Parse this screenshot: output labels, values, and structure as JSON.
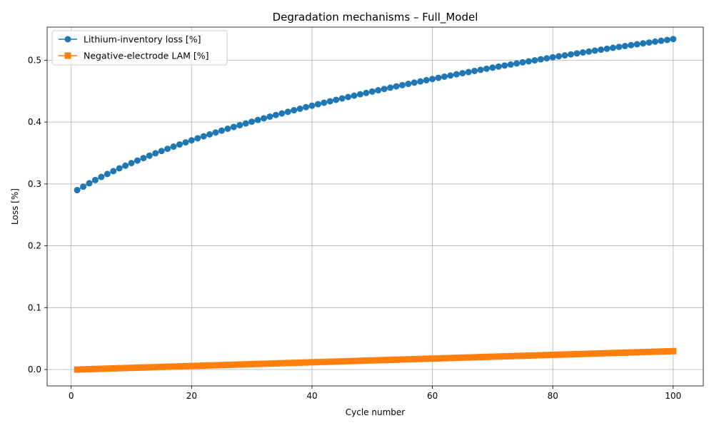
{
  "chart_data": {
    "type": "line",
    "title": "Degradation mechanisms – Full_Model",
    "xlabel": "Cycle number",
    "ylabel": "Loss [%]",
    "xlim": [
      -4.0,
      105.0
    ],
    "ylim": [
      -0.0265,
      0.5535
    ],
    "xticks": [
      0,
      20,
      40,
      60,
      80,
      100
    ],
    "yticks": [
      0.0,
      0.1,
      0.2,
      0.3,
      0.4,
      0.5
    ],
    "grid": true,
    "legend_position": "top-left",
    "x": [
      1,
      2,
      3,
      4,
      5,
      6,
      7,
      8,
      9,
      10,
      11,
      12,
      13,
      14,
      15,
      16,
      17,
      18,
      19,
      20,
      21,
      22,
      23,
      24,
      25,
      26,
      27,
      28,
      29,
      30,
      31,
      32,
      33,
      34,
      35,
      36,
      37,
      38,
      39,
      40,
      41,
      42,
      43,
      44,
      45,
      46,
      47,
      48,
      49,
      50,
      51,
      52,
      53,
      54,
      55,
      56,
      57,
      58,
      59,
      60,
      61,
      62,
      63,
      64,
      65,
      66,
      67,
      68,
      69,
      70,
      71,
      72,
      73,
      74,
      75,
      76,
      77,
      78,
      79,
      80,
      81,
      82,
      83,
      84,
      85,
      86,
      87,
      88,
      89,
      90,
      91,
      92,
      93,
      94,
      95,
      96,
      97,
      98,
      99,
      100
    ],
    "series": [
      {
        "name": "Lithium-inventory loss [%]",
        "color": "#1f77b4",
        "marker": "circle",
        "values": [
          0.29,
          0.2956,
          0.3011,
          0.3063,
          0.3113,
          0.3161,
          0.3207,
          0.3252,
          0.3295,
          0.3337,
          0.3378,
          0.3418,
          0.3457,
          0.3495,
          0.3532,
          0.3568,
          0.3603,
          0.3638,
          0.3672,
          0.3705,
          0.3738,
          0.377,
          0.3801,
          0.3832,
          0.3862,
          0.3892,
          0.3921,
          0.395,
          0.3978,
          0.4006,
          0.4034,
          0.4061,
          0.4088,
          0.4114,
          0.414,
          0.4166,
          0.4191,
          0.4216,
          0.4241,
          0.4265,
          0.4289,
          0.4313,
          0.4336,
          0.4359,
          0.4382,
          0.4405,
          0.4427,
          0.4449,
          0.4471,
          0.4493,
          0.4514,
          0.4535,
          0.4556,
          0.4577,
          0.4597,
          0.4618,
          0.4638,
          0.4657,
          0.4677,
          0.4696,
          0.4715,
          0.4734,
          0.4753,
          0.4772,
          0.479,
          0.4808,
          0.4826,
          0.4844,
          0.4862,
          0.488,
          0.4897,
          0.4914,
          0.4931,
          0.4948,
          0.4965,
          0.4982,
          0.4998,
          0.5014,
          0.5031,
          0.5047,
          0.5063,
          0.5078,
          0.5094,
          0.511,
          0.5125,
          0.514,
          0.5155,
          0.517,
          0.5185,
          0.52,
          0.5215,
          0.5229,
          0.5244,
          0.5258,
          0.5272,
          0.5286,
          0.53,
          0.5314,
          0.5328,
          0.5342
        ]
      },
      {
        "name": "Negative-electrode LAM [%]",
        "color": "#ff7f0e",
        "marker": "square",
        "values": [
          0.0,
          0.0003,
          0.0006,
          0.0009,
          0.0012,
          0.0015,
          0.0018,
          0.0021,
          0.0024,
          0.0027,
          0.003,
          0.0033,
          0.0036,
          0.0039,
          0.0042,
          0.0045,
          0.0048,
          0.0051,
          0.0054,
          0.0057,
          0.006,
          0.0063,
          0.0066,
          0.0069,
          0.0072,
          0.0075,
          0.0078,
          0.0081,
          0.0084,
          0.0087,
          0.009,
          0.0093,
          0.0096,
          0.0099,
          0.0102,
          0.0105,
          0.0108,
          0.0111,
          0.0114,
          0.0117,
          0.012,
          0.0123,
          0.0126,
          0.0129,
          0.0132,
          0.0135,
          0.0138,
          0.0141,
          0.0144,
          0.0147,
          0.015,
          0.0153,
          0.0156,
          0.0159,
          0.0162,
          0.0165,
          0.0168,
          0.0171,
          0.0174,
          0.0177,
          0.018,
          0.0183,
          0.0186,
          0.0189,
          0.0192,
          0.0195,
          0.0198,
          0.0201,
          0.0204,
          0.0207,
          0.021,
          0.0213,
          0.0216,
          0.0219,
          0.0222,
          0.0225,
          0.0228,
          0.0231,
          0.0234,
          0.0237,
          0.024,
          0.0243,
          0.0246,
          0.0249,
          0.0252,
          0.0255,
          0.0258,
          0.0261,
          0.0264,
          0.0267,
          0.027,
          0.0273,
          0.0276,
          0.0279,
          0.0282,
          0.0285,
          0.0288,
          0.0291,
          0.0294,
          0.0297
        ]
      }
    ]
  }
}
